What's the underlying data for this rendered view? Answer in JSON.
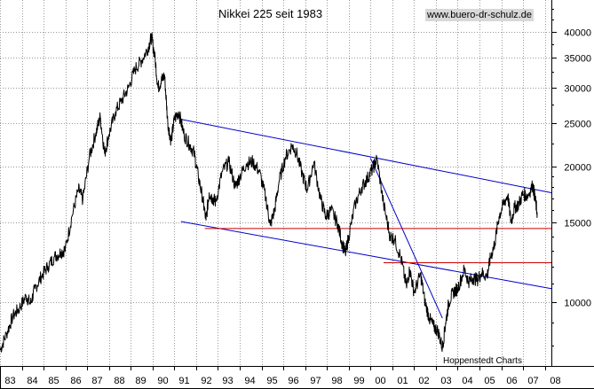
{
  "chart_data": {
    "type": "line",
    "title": "Nikkei 225 seit 1983",
    "watermark": "www.buero-dr-schulz.de",
    "source": "Hoppenstedt Charts",
    "y_scale": "log",
    "ylim": [
      7200,
      47000
    ],
    "xlim": [
      1983.0,
      2008.3
    ],
    "y_ticks": [
      10000,
      15000,
      20000,
      25000,
      30000,
      35000,
      40000
    ],
    "y_tick_labels": [
      "10000",
      "15000",
      "20000",
      "25000",
      "30000",
      "35000",
      "40000"
    ],
    "x_ticks": [
      1983,
      1984,
      1985,
      1986,
      1987,
      1988,
      1989,
      1990,
      1991,
      1992,
      1993,
      1994,
      1995,
      1996,
      1997,
      1998,
      1999,
      2000,
      2001,
      2002,
      2003,
      2004,
      2005,
      2006,
      2007,
      2008
    ],
    "x_tick_labels": [
      "83",
      "84",
      "85",
      "86",
      "87",
      "88",
      "89",
      "90",
      "91",
      "92",
      "93",
      "94",
      "95",
      "96",
      "97",
      "98",
      "99",
      "00",
      "01",
      "02",
      "03",
      "04",
      "05",
      "06",
      "07",
      "08"
    ],
    "grid": true,
    "colors": {
      "price": "#000000",
      "trend": "#0000cc",
      "support": "#cc0000"
    },
    "series": [
      {
        "values_type": "index",
        "x": [
          1983.0,
          1983.3,
          1983.6,
          1983.9,
          1984.2,
          1984.4,
          1984.6,
          1984.9,
          1985.2,
          1985.5,
          1985.8,
          1986.0,
          1986.3,
          1986.6,
          1986.8,
          1987.1,
          1987.4,
          1987.6,
          1987.8,
          1988.0,
          1988.3,
          1988.6,
          1988.9,
          1989.2,
          1989.5,
          1989.8,
          1989.95,
          1990.1,
          1990.25,
          1990.4,
          1990.55,
          1990.7,
          1990.85,
          1991.0,
          1991.2,
          1991.45,
          1991.7,
          1991.9,
          1992.1,
          1992.3,
          1992.45,
          1992.6,
          1992.75,
          1992.9,
          1993.2,
          1993.5,
          1993.8,
          1994.0,
          1994.3,
          1994.6,
          1994.9,
          1995.2,
          1995.4,
          1995.6,
          1995.8,
          1996.1,
          1996.4,
          1996.6,
          1996.9,
          1997.1,
          1997.4,
          1997.7,
          1997.95,
          1998.2,
          1998.5,
          1998.7,
          1998.85,
          1999.0,
          1999.3,
          1999.6,
          1999.85,
          2000.1,
          2000.3,
          2000.6,
          2000.9,
          2001.1,
          2001.4,
          2001.65,
          2001.8,
          2002.0,
          2002.3,
          2002.5,
          2002.7,
          2002.9,
          2003.1,
          2003.3,
          2003.45,
          2003.6,
          2003.8,
          2004.0,
          2004.3,
          2004.5,
          2004.7,
          2004.9,
          2005.1,
          2005.35,
          2005.5,
          2005.7,
          2005.9,
          2006.1,
          2006.3,
          2006.45,
          2006.6,
          2006.8,
          2007.0,
          2007.2,
          2007.45,
          2007.55,
          2007.65
        ],
        "values": [
          7800,
          8500,
          9300,
          9700,
          10300,
          9900,
          10700,
          11400,
          12000,
          12600,
          12900,
          13100,
          15500,
          17800,
          16900,
          21000,
          23800,
          25800,
          21400,
          23600,
          26500,
          28200,
          30000,
          33000,
          34500,
          36800,
          38900,
          35300,
          30000,
          31000,
          32000,
          25000,
          22800,
          25500,
          26500,
          23500,
          22400,
          21500,
          19000,
          17000,
          15200,
          17500,
          17000,
          16700,
          19500,
          20500,
          18000,
          19000,
          20300,
          20500,
          19500,
          17000,
          14800,
          16000,
          18500,
          21000,
          22300,
          21500,
          19000,
          17800,
          20500,
          17000,
          15500,
          16000,
          14900,
          13500,
          12800,
          14000,
          16500,
          18000,
          18800,
          19800,
          20800,
          16500,
          14000,
          13800,
          12500,
          10800,
          11800,
          10500,
          11500,
          10000,
          9200,
          8800,
          8600,
          7900,
          9000,
          10000,
          10500,
          10700,
          11800,
          11100,
          11300,
          11200,
          11600,
          11400,
          12500,
          13500,
          15500,
          16500,
          17300,
          15000,
          16200,
          16500,
          17400,
          17200,
          18200,
          17000,
          15800
        ]
      }
    ],
    "trend_lines": [
      {
        "x": [
          1991.3,
          2008.3
        ],
        "values": [
          25500,
          17500
        ]
      },
      {
        "x": [
          1991.3,
          2008.3
        ],
        "values": [
          15100,
          10700
        ]
      },
      {
        "x": [
          2000.0,
          2003.3
        ],
        "values": [
          20900,
          9200
        ]
      }
    ],
    "support_lines": [
      {
        "x1": 1992.4,
        "x2": 2008.3,
        "value": 14600
      },
      {
        "x1": 2000.6,
        "x2": 2008.3,
        "value": 12250
      }
    ]
  }
}
